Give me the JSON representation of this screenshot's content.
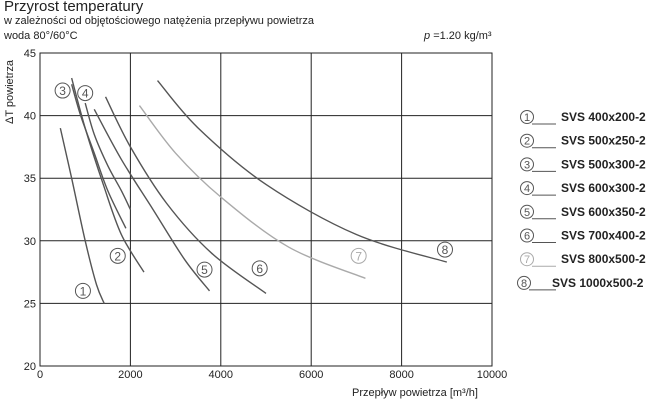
{
  "header": {
    "title": "Przyrost temperatury",
    "subtitle": "w zależności od objętościowego natężenia przepływu powietrza",
    "conditions": "woda 80°/60°C",
    "density_symbol": "p",
    "density_value": "=1.20 kg/m³"
  },
  "chart_data": {
    "type": "line",
    "title": "Przyrost temperatury",
    "xlabel": "Przepływ powietrza [m³/h]",
    "ylabel": "ΔT powietrza",
    "xlim": [
      0,
      10000
    ],
    "ylim": [
      20,
      45
    ],
    "x_ticks": [
      "0",
      "2000",
      "4000",
      "6000",
      "8000",
      "10000"
    ],
    "y_ticks": [
      "20",
      "25",
      "30",
      "35",
      "40",
      "45"
    ],
    "grid": true,
    "legend_position": "right",
    "series": [
      {
        "marker": "1",
        "name": "SVS 400x200-2",
        "color": "#555555",
        "x": [
          450,
          700,
          1000,
          1250,
          1420
        ],
        "y": [
          39,
          35,
          30,
          26.5,
          25
        ],
        "label_at": [
          950,
          26
        ]
      },
      {
        "marker": "2",
        "name": "SVS 500x250-2",
        "color": "#555555",
        "x": [
          700,
          1000,
          1400,
          1800,
          2300
        ],
        "y": [
          43,
          39,
          34.5,
          30.5,
          27.5
        ],
        "label_at": [
          1720,
          28.8
        ]
      },
      {
        "marker": "3",
        "name": "SVS 500x300-2",
        "color": "#555555",
        "x": [
          700,
          900,
          1200,
          1500,
          1900
        ],
        "y": [
          42.5,
          40,
          37,
          34,
          31
        ],
        "label_at": [
          500,
          42
        ]
      },
      {
        "marker": "4",
        "name": "SVS 600x300-2",
        "color": "#555555",
        "x": [
          1000,
          1200,
          1500,
          1800,
          2000
        ],
        "y": [
          41,
          38.5,
          36,
          34,
          32.5
        ],
        "label_at": [
          1000,
          41.8
        ]
      },
      {
        "marker": "5",
        "name": "SVS 600x350-2",
        "color": "#555555",
        "x": [
          1200,
          1800,
          2500,
          3200,
          3750
        ],
        "y": [
          40.5,
          36.5,
          32.5,
          28.5,
          26
        ],
        "label_at": [
          3640,
          27.7
        ]
      },
      {
        "marker": "6",
        "name": "SVS 700x400-2",
        "color": "#555555",
        "x": [
          1450,
          2000,
          2800,
          3800,
          5000
        ],
        "y": [
          41.5,
          37.5,
          33,
          29,
          25.8
        ],
        "label_at": [
          4860,
          27.8
        ]
      },
      {
        "marker": "7",
        "name": "SVS 800x500-2",
        "color": "#aaaaaa",
        "x": [
          2200,
          3000,
          4000,
          5500,
          7200
        ],
        "y": [
          40.8,
          37,
          33.5,
          29.5,
          27
        ],
        "label_at": [
          7050,
          28.8
        ]
      },
      {
        "marker": "8",
        "name": "SVS 1000x500-2",
        "color": "#555555",
        "x": [
          2600,
          3500,
          5000,
          7000,
          9000
        ],
        "y": [
          42.8,
          39,
          34.5,
          30.5,
          28.3
        ],
        "label_at": [
          8960,
          29.3
        ]
      }
    ]
  }
}
